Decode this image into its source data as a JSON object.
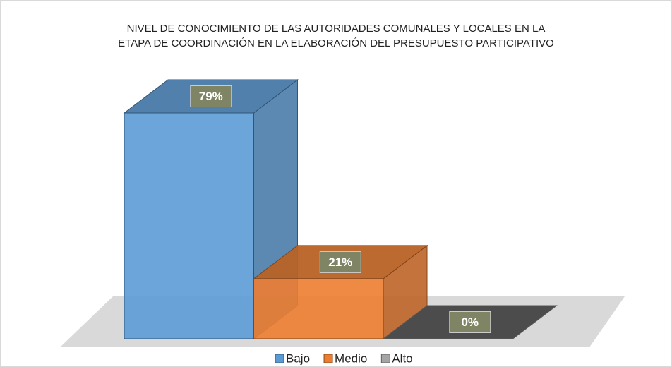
{
  "chart_data": {
    "type": "bar3d",
    "title": [
      "NIVEL DE CONOCIMIENTO DE LAS AUTORIDADES COMUNALES Y LOCALES  EN LA",
      "ETAPA DE COORDINACIÓN EN LA ELABORACIÓN DEL PRESUPUESTO PARTICIPATIVO"
    ],
    "categories": [
      "Bajo",
      "Medio",
      "Alto"
    ],
    "values": [
      79,
      21,
      0
    ],
    "value_labels": [
      "79%",
      "21%",
      "0%"
    ],
    "colors": [
      "#5b9bd5",
      "#ed7d31",
      "#a5a5a5"
    ],
    "legend": "bottom"
  }
}
